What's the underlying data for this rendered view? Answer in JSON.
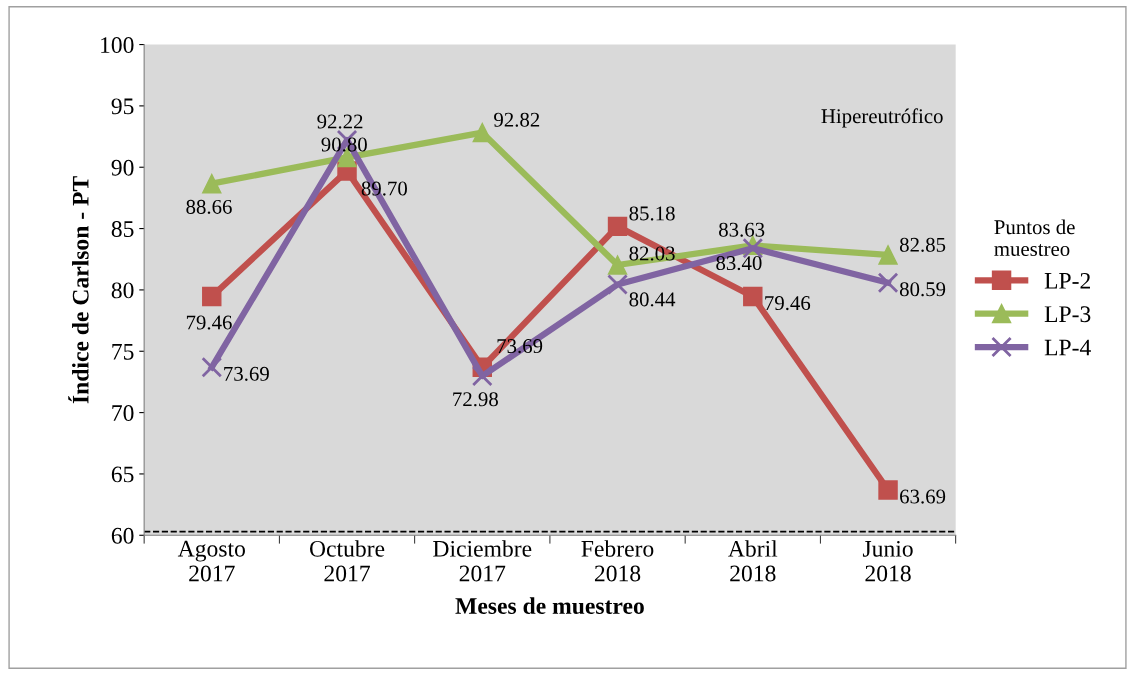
{
  "chart_data": {
    "type": "line",
    "xlabel": "Meses de muestreo",
    "ylabel": "Índice de Carlson - PT",
    "legend_title": "Puntos de\nmuestreo",
    "categories": [
      "Agosto\n2017",
      "Octubre\n2017",
      "Diciembre\n2017",
      "Febrero\n2018",
      "Abril\n2018",
      "Junio\n2018"
    ],
    "series": [
      {
        "name": "LP-2",
        "color": "#c0504d",
        "marker": "square",
        "values": [
          79.46,
          89.7,
          73.69,
          85.18,
          79.46,
          63.69
        ],
        "value_labels": [
          "79.46",
          "89.70",
          "73.69",
          "85.18",
          "79.46",
          "63.69"
        ]
      },
      {
        "name": "LP-3",
        "color": "#9bbb59",
        "marker": "triangle",
        "values": [
          88.66,
          90.8,
          92.82,
          82.03,
          83.63,
          82.85
        ],
        "value_labels": [
          "88.66",
          "90.80",
          "92.82",
          "82.03",
          "83.63",
          "82.85"
        ]
      },
      {
        "name": "LP-4",
        "color": "#8064a2",
        "marker": "cross",
        "values": [
          73.69,
          92.22,
          72.98,
          80.44,
          83.4,
          80.59
        ],
        "value_labels": [
          "73.69",
          "92.22",
          "72.98",
          "80.44",
          "83.40",
          "80.59"
        ]
      }
    ],
    "ylim": [
      60,
      100
    ],
    "yticks": [
      60,
      65,
      70,
      75,
      80,
      85,
      90,
      95,
      100
    ],
    "ref_lines": [
      {
        "axis": "y",
        "value": 60.3,
        "color": "#000000",
        "line_style": "dashed"
      }
    ],
    "annotations": [
      "Hipereutrófico"
    ],
    "grid": false,
    "legend": "right",
    "line_style": "solid"
  }
}
